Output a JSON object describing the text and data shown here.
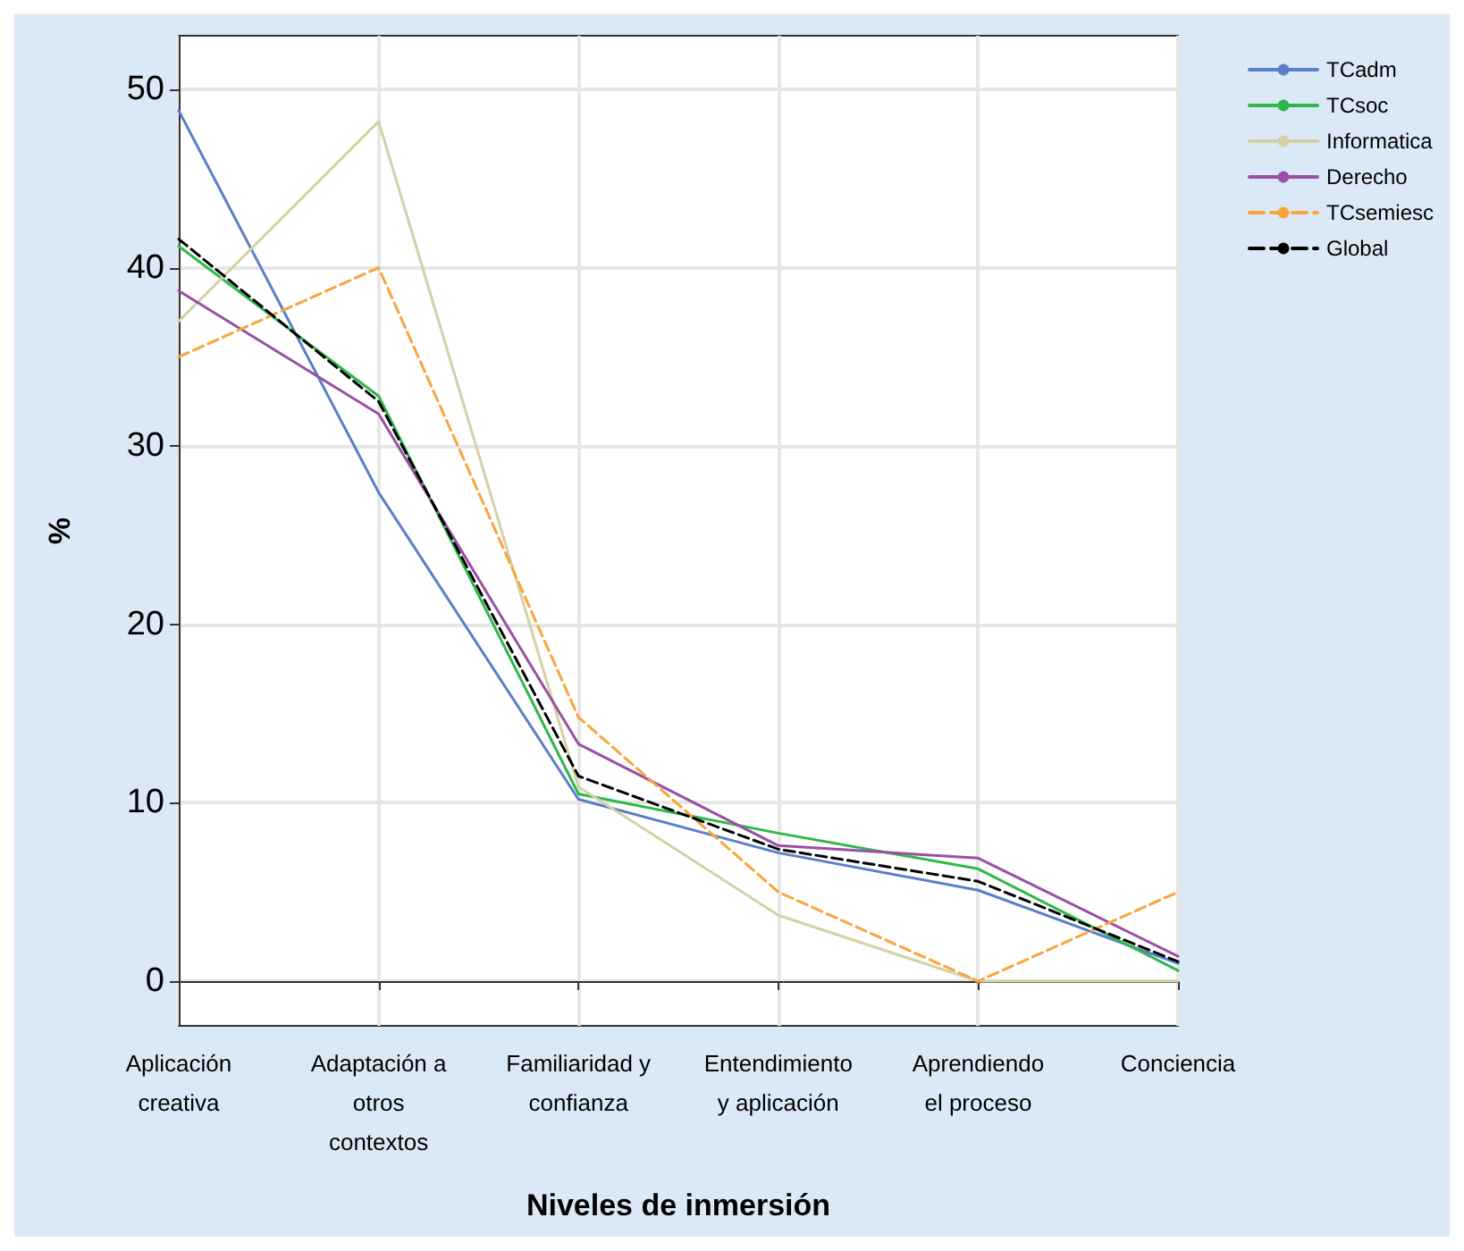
{
  "chart_data": {
    "type": "line",
    "xlabel": "Niveles de inmersión",
    "ylabel": "%",
    "categories": [
      "Aplicación\ncreativa",
      "Adaptación a\notros\ncontextos",
      "Familiaridad y\nconfianza",
      "Entendimiento\ny aplicación",
      "Aprendiendo\nel proceso",
      "Conciencia"
    ],
    "series": [
      {
        "name": "TCadm",
        "color": "#5b7fc7",
        "values": [
          48.8,
          27.4,
          10.2,
          7.2,
          5.1,
          1.0
        ]
      },
      {
        "name": "TCsoc",
        "color": "#2fb84a",
        "values": [
          41.2,
          32.8,
          10.5,
          8.3,
          6.3,
          0.6
        ]
      },
      {
        "name": "Informatica",
        "color": "#d6d0a6",
        "values": [
          37.0,
          48.2,
          10.9,
          3.7,
          0,
          0
        ]
      },
      {
        "name": "Derecho",
        "color": "#9a4fa3",
        "values": [
          38.7,
          31.8,
          13.3,
          7.6,
          6.9,
          1.4
        ]
      },
      {
        "name": "TCsemiesc",
        "color": "#f9a43c",
        "line_style": "dashed",
        "values": [
          35.0,
          40.0,
          14.8,
          5.0,
          0,
          5.0
        ]
      },
      {
        "name": "Global",
        "color": "#000000",
        "line_style": "dashed",
        "values": [
          41.6,
          32.5,
          11.5,
          7.4,
          5.6,
          1.1
        ]
      }
    ],
    "ylim": [
      -2.5,
      53
    ],
    "yticks": [
      0,
      10,
      20,
      30,
      40,
      50
    ],
    "grid": true,
    "legend": "top right",
    "marker": "none",
    "line_style": "solid"
  }
}
